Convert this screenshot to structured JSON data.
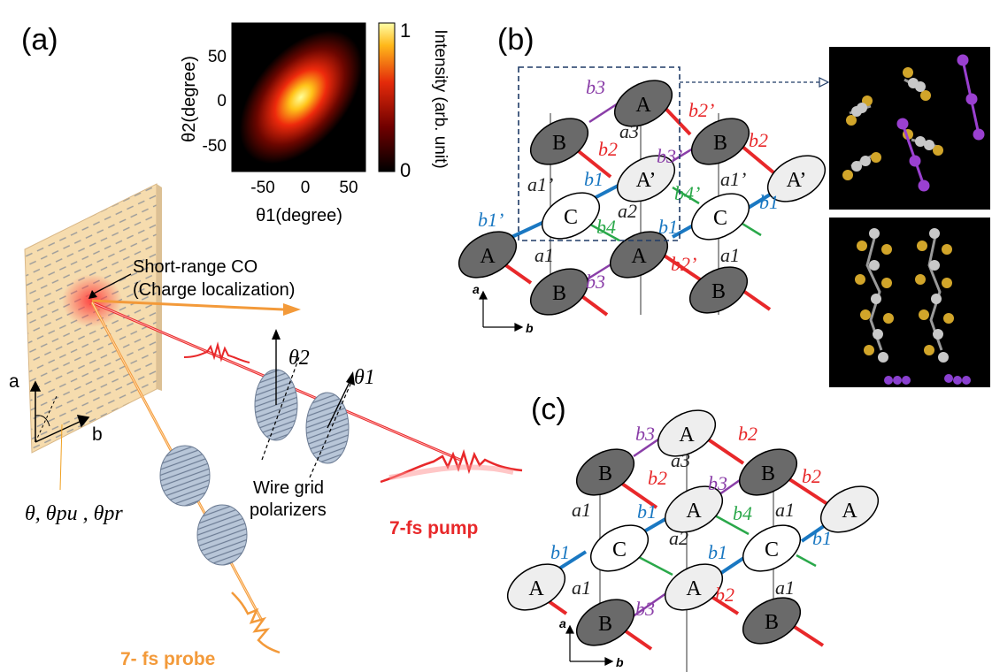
{
  "panel_labels": {
    "a": "(a)",
    "b": "(b)",
    "c": "(c)"
  },
  "colors": {
    "pump": "#e8282a",
    "probe": "#f39a3a",
    "bond_b1": "#1a78c2",
    "bond_b2": "#e8282a",
    "bond_b3": "#8a3ea8",
    "bond_b4": "#2aa84a",
    "bond_a": "#999999",
    "sample": "#f6dcae",
    "polarizer": "#a8b8cc"
  },
  "heatmap": {
    "ylabel": "θ2(degree)",
    "xlabel": "θ1(degree)",
    "y_ticks": [
      "50",
      "0",
      "-50"
    ],
    "x_ticks": [
      "-50",
      "0",
      "50"
    ],
    "colorbar_label": "Intensity (arb. unit)",
    "colorbar_max": "1",
    "colorbar_min": "0"
  },
  "setup": {
    "co_label_line1": "Short-range  CO",
    "co_label_line2": "(Charge localization)",
    "axis_a": "a",
    "axis_b": "b",
    "theta1": "θ1",
    "theta2": "θ2",
    "angles": "θ, θpu , θpr",
    "polarizers_line1": "Wire grid",
    "polarizers_line2": "polarizers",
    "pump_label": "7-fs pump",
    "probe_label": "7- fs probe"
  },
  "lattice_b": {
    "molecules": [
      "A",
      "B",
      "A’",
      "C",
      "A",
      "B",
      "A’",
      "C",
      "A",
      "B"
    ],
    "bonds": [
      "b3",
      "b2’",
      "a3",
      "b2",
      "b3’",
      "b2",
      "a1’",
      "b1",
      "b4’",
      "a1’",
      "b1",
      "a2",
      "b1’",
      "b4",
      "b1",
      "a1",
      "b3",
      "b2’",
      "a1"
    ],
    "axis_a": "a",
    "axis_b": "b"
  },
  "lattice_c": {
    "molecules": [
      "A",
      "B",
      "A",
      "B",
      "A",
      "C",
      "C",
      "A",
      "A",
      "B",
      "B",
      "A"
    ],
    "bonds": [
      "b3",
      "b2",
      "a3",
      "b2",
      "b3",
      "b2",
      "a1",
      "b1",
      "b4",
      "a1",
      "b1",
      "a2",
      "b1",
      "b1",
      "a1",
      "b3",
      "b2",
      "a1"
    ],
    "axis_a": "a",
    "axis_b": "b"
  }
}
